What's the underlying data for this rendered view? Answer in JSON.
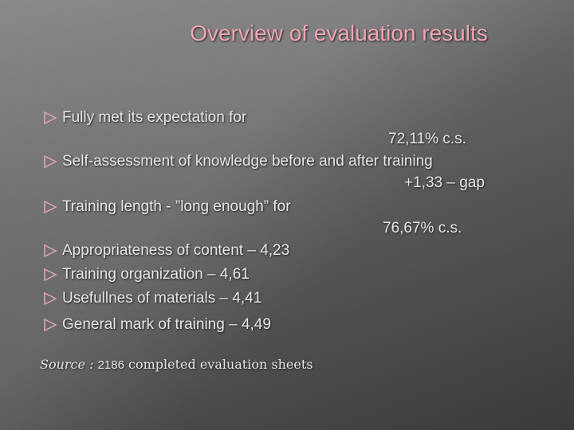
{
  "title": "Overview of evaluation results",
  "bullets": [
    {
      "text": "Fully met its expectation for",
      "value": "72,11%  c.s."
    },
    {
      "text": "Self-assessment of knowledge before and after training",
      "value": "+1,33 – gap"
    },
    {
      "text": "Training length - ”long enough” for",
      "value": "76,67% c.s."
    },
    {
      "text": "Appropriateness of content –  4,23"
    },
    {
      "text": "Training organization – 4,61"
    },
    {
      "text": "Usefullnes of materials – 4,41"
    },
    {
      "text": "General mark of training – 4,49"
    }
  ],
  "source": {
    "label": "Source :",
    "count": "2186",
    "text": "completed evaluation sheets"
  }
}
